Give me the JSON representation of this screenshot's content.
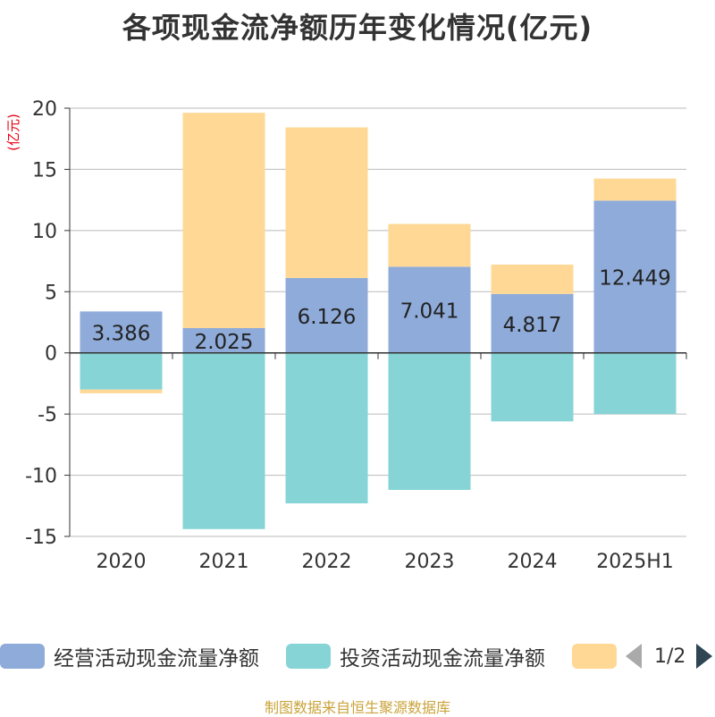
{
  "title": "各项现金流净额历年变化情况(亿元)",
  "unit_label": "(亿元)",
  "source": "制图数据来自恒生聚源数据库",
  "pager": {
    "text": "1/2"
  },
  "colors": {
    "operating": "#8fabd9",
    "investing": "#86d4d6",
    "financing": "#ffd896",
    "axis": "#333333",
    "grid": "#bbbbbb",
    "unit": "#e60012"
  },
  "legend": [
    {
      "name": "经营活动现金流量净额",
      "color": "#8fabd9"
    },
    {
      "name": "投资活动现金流量净额",
      "color": "#86d4d6"
    },
    {
      "name": "",
      "color": "#ffd896"
    }
  ],
  "chart_data": {
    "type": "bar",
    "stacked": true,
    "categories": [
      "2020",
      "2021",
      "2022",
      "2023",
      "2024",
      "2025H1"
    ],
    "ylim": [
      -15,
      20
    ],
    "yticks": [
      -15,
      -10,
      -5,
      0,
      5,
      10,
      15,
      20
    ],
    "ylabel": "(亿元)",
    "grid": true,
    "legend_position": "bottom",
    "series": [
      {
        "name": "经营活动现金流量净额",
        "values": [
          3.386,
          2.025,
          6.126,
          7.041,
          4.817,
          12.449
        ],
        "labels": [
          "3.386",
          "2.025",
          "6.126",
          "7.041",
          "4.817",
          "12.449"
        ]
      },
      {
        "name": "投资活动现金流量净额",
        "values": [
          -3.0,
          -14.4,
          -12.3,
          -11.2,
          -5.6,
          -5.0
        ]
      },
      {
        "values": [
          -0.3,
          17.6,
          12.3,
          3.5,
          2.4,
          1.8
        ]
      }
    ]
  }
}
